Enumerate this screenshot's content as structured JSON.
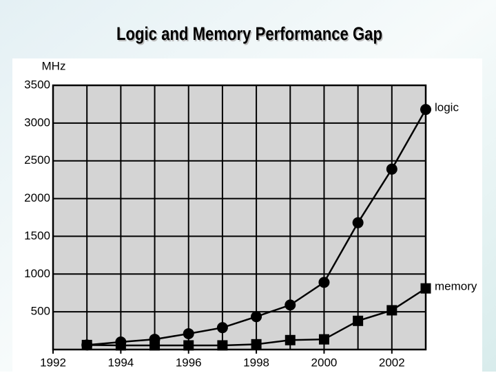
{
  "chart_data": {
    "type": "line",
    "title": "Logic and Memory Performance Gap",
    "y_label": "MHz",
    "x": [
      1993,
      1994,
      1995,
      1996,
      1997,
      1998,
      1999,
      2000,
      2001,
      2002,
      2003
    ],
    "series": [
      {
        "name": "logic",
        "color": "#000000",
        "marker": "circle",
        "values": [
          60,
          100,
          136,
          210,
          290,
          436,
          590,
          890,
          1680,
          2390,
          3180
        ]
      },
      {
        "name": "memory",
        "color": "#000000",
        "marker": "square",
        "values": [
          60,
          55,
          55,
          55,
          55,
          70,
          125,
          135,
          380,
          520,
          810
        ]
      }
    ],
    "xlim": [
      1992,
      2003
    ],
    "xticks": [
      1992,
      1994,
      1996,
      1998,
      2000,
      2002
    ],
    "xgrid_step": 1,
    "ylim": [
      0,
      3500
    ],
    "yticks": [
      500,
      1000,
      1500,
      2000,
      2500,
      3000,
      3500
    ],
    "grid": true,
    "plot_color": "#d4d4d4"
  }
}
